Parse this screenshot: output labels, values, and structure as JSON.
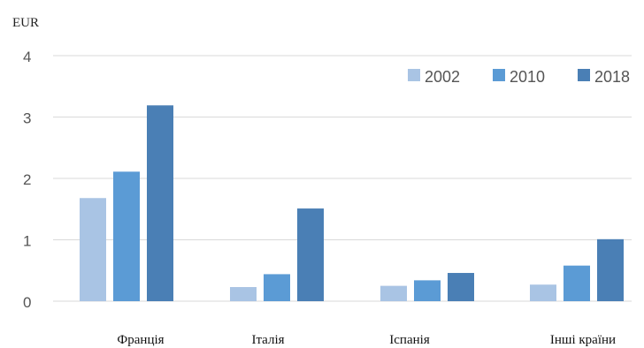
{
  "chart_data": {
    "type": "bar",
    "unit_label": "EUR",
    "categories": [
      "Франція",
      "Італія",
      "Іспанія",
      "Інші країни"
    ],
    "series": [
      {
        "name": "2002",
        "color": "#a9c4e4",
        "values": [
          1.68,
          0.23,
          0.25,
          0.27
        ]
      },
      {
        "name": "2010",
        "color": "#5b9bd5",
        "values": [
          2.11,
          0.44,
          0.34,
          0.58
        ]
      },
      {
        "name": "2018",
        "color": "#4a7fb5",
        "values": [
          3.19,
          1.51,
          0.46,
          1.01
        ]
      }
    ],
    "ylim": [
      0,
      4
    ],
    "yticks": [
      "0",
      "1",
      "2",
      "3",
      "4"
    ],
    "grid": true,
    "legend_position": "top-right"
  }
}
